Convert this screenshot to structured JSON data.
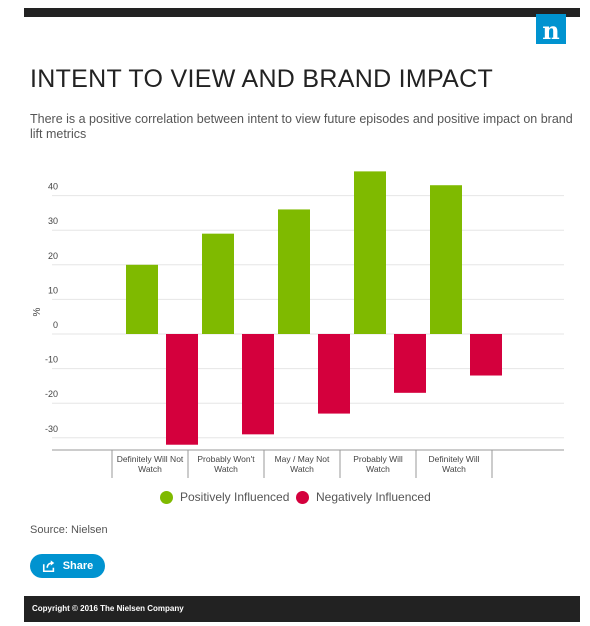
{
  "logo": "n",
  "header": {
    "title": "INTENT TO VIEW AND BRAND IMPACT",
    "subtitle": "There is a positive correlation between intent to view future episodes and positive impact on brand lift metrics"
  },
  "chart_data": {
    "type": "bar",
    "categories": [
      [
        "Definitely Will Not",
        "Watch"
      ],
      [
        "Probably Won't",
        "Watch"
      ],
      [
        "May / May Not",
        "Watch"
      ],
      [
        "Probably Will",
        "Watch"
      ],
      [
        "Definitely Will",
        "Watch"
      ]
    ],
    "series": [
      {
        "name": "Positively Influenced",
        "color": "#7fba00",
        "values": [
          20,
          29,
          36,
          47,
          43
        ]
      },
      {
        "name": "Negatively Influenced",
        "color": "#d4003d",
        "values": [
          -32,
          -29,
          -23,
          -17,
          -12
        ]
      }
    ],
    "xlabel": "",
    "ylabel": "%",
    "ylim": [
      -35,
      45
    ],
    "yticks": [
      40,
      30,
      20,
      10,
      0,
      -10,
      -20,
      -30
    ],
    "grid": true,
    "legend_position": "bottom"
  },
  "source": "Source: Nielsen",
  "share": {
    "label": "Share",
    "icon": "share-icon"
  },
  "footer": {
    "copyright": "Copyright © 2016 The Nielsen Company"
  }
}
